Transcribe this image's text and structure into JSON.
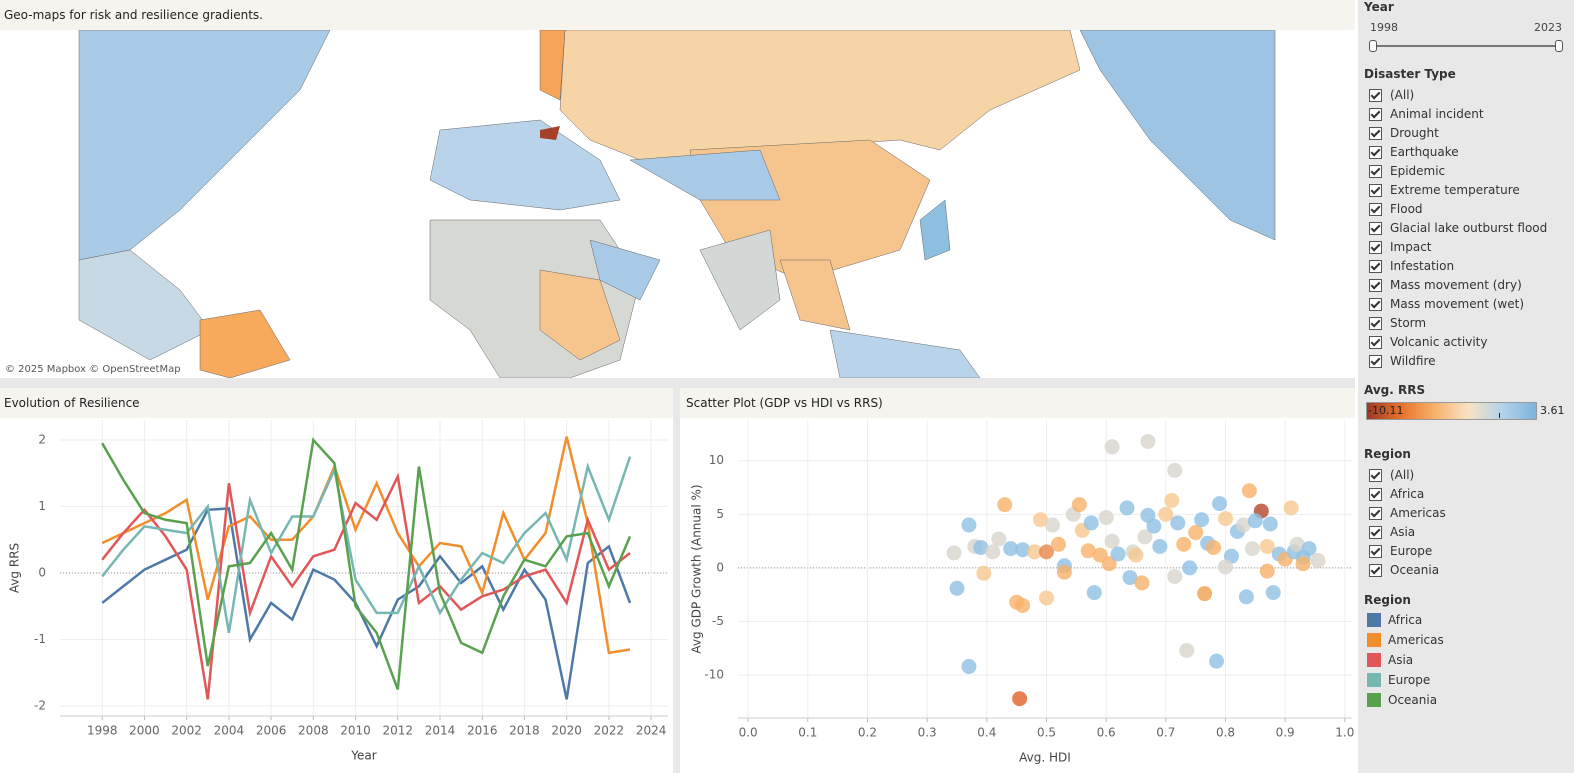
{
  "title": "Geo-maps for risk and resilience gradients.",
  "map": {
    "attribution": "© 2025 Mapbox © OpenStreetMap"
  },
  "filters": {
    "year": {
      "title": "Year",
      "min": 1998,
      "max": 2023
    },
    "disaster_type": {
      "title": "Disaster Type",
      "options": [
        "(All)",
        "Animal incident",
        "Drought",
        "Earthquake",
        "Epidemic",
        "Extreme temperature",
        "Flood",
        "Glacial lake outburst flood",
        "Impact",
        "Infestation",
        "Mass movement (dry)",
        "Mass movement (wet)",
        "Storm",
        "Volcanic activity",
        "Wildfire"
      ]
    },
    "region": {
      "title": "Region",
      "options": [
        "(All)",
        "Africa",
        "Americas",
        "Asia",
        "Europe",
        "Oceania"
      ]
    }
  },
  "color_legend": {
    "title": "Avg. RRS",
    "min": -10.11,
    "max": 3.61
  },
  "region_legend": {
    "title": "Region"
  },
  "chart_data": [
    {
      "type": "line",
      "title": "Evolution of Resilience",
      "x_label": "Year",
      "y_label": "Avg RRS",
      "x": [
        1998,
        1999,
        2000,
        2001,
        2002,
        2003,
        2004,
        2005,
        2006,
        2007,
        2008,
        2009,
        2010,
        2011,
        2012,
        2013,
        2014,
        2015,
        2016,
        2017,
        2018,
        2019,
        2020,
        2021,
        2022,
        2023
      ],
      "series": [
        {
          "name": "Africa",
          "color": "#4e79a7",
          "values": [
            -0.45,
            -0.2,
            0.05,
            0.2,
            0.35,
            0.95,
            0.97,
            -1.0,
            -0.45,
            -0.7,
            0.05,
            -0.1,
            -0.45,
            -1.1,
            -0.4,
            -0.2,
            0.25,
            -0.15,
            0.1,
            -0.55,
            0.05,
            -0.4,
            -1.9,
            0.15,
            0.4,
            -0.45
          ]
        },
        {
          "name": "Americas",
          "color": "#f28e2b",
          "values": [
            0.45,
            0.6,
            0.75,
            0.9,
            1.1,
            -0.4,
            0.7,
            0.85,
            0.5,
            0.5,
            0.85,
            1.6,
            0.65,
            1.35,
            0.6,
            0.1,
            0.45,
            0.4,
            -0.3,
            0.9,
            0.2,
            0.6,
            2.05,
            0.75,
            -1.2,
            -1.15
          ]
        },
        {
          "name": "Asia",
          "color": "#e15759",
          "values": [
            0.2,
            0.6,
            0.95,
            0.55,
            0.05,
            -1.9,
            1.35,
            -0.6,
            0.25,
            -0.2,
            0.25,
            0.35,
            1.05,
            0.8,
            1.45,
            -0.45,
            -0.2,
            -0.55,
            -0.35,
            -0.25,
            -0.05,
            0.05,
            -0.45,
            0.8,
            0.05,
            0.3
          ]
        },
        {
          "name": "Europe",
          "color": "#76b7b2",
          "values": [
            -0.05,
            0.35,
            0.7,
            0.65,
            0.6,
            1.0,
            -0.9,
            1.1,
            0.3,
            0.85,
            0.85,
            1.55,
            -0.1,
            -0.6,
            -0.6,
            0.1,
            -0.6,
            -0.1,
            0.3,
            0.15,
            0.6,
            0.9,
            0.2,
            1.6,
            0.8,
            1.75
          ]
        },
        {
          "name": "Oceania",
          "color": "#59a14f",
          "values": [
            1.95,
            1.4,
            0.9,
            0.8,
            0.75,
            -1.4,
            0.1,
            0.15,
            0.6,
            0.05,
            2.0,
            1.65,
            -0.5,
            -0.9,
            -1.75,
            1.6,
            -0.3,
            -1.05,
            -1.2,
            -0.35,
            0.2,
            0.1,
            0.55,
            0.6,
            -0.2,
            0.55
          ]
        }
      ],
      "xlim": [
        1996,
        2024.8
      ],
      "xticks": [
        1998,
        2000,
        2002,
        2004,
        2006,
        2008,
        2010,
        2012,
        2014,
        2016,
        2018,
        2020,
        2022,
        2024
      ],
      "ylim": [
        -2.15,
        2.3
      ],
      "yticks": [
        -2,
        -1,
        0,
        1,
        2
      ],
      "grid": true
    },
    {
      "type": "scatter",
      "title": "Scatter Plot (GDP vs HDI vs RRS)",
      "x_label": "Avg. HDI",
      "y_label": "Avg GDP Growth (Annual %)",
      "x": [
        0.37,
        0.455,
        0.785,
        0.735,
        0.61,
        0.67,
        0.715,
        0.43,
        0.84,
        0.86,
        0.35,
        0.45,
        0.46,
        0.5,
        0.58,
        0.765,
        0.835,
        0.88,
        0.345,
        0.37,
        0.38,
        0.39,
        0.395,
        0.41,
        0.42,
        0.44,
        0.46,
        0.48,
        0.5,
        0.49,
        0.51,
        0.52,
        0.53,
        0.53,
        0.545,
        0.555,
        0.56,
        0.57,
        0.575,
        0.59,
        0.6,
        0.605,
        0.61,
        0.62,
        0.635,
        0.64,
        0.645,
        0.65,
        0.66,
        0.665,
        0.67,
        0.68,
        0.69,
        0.7,
        0.71,
        0.715,
        0.72,
        0.73,
        0.74,
        0.75,
        0.76,
        0.77,
        0.78,
        0.79,
        0.8,
        0.81,
        0.82,
        0.83,
        0.845,
        0.85,
        0.87,
        0.875,
        0.89,
        0.9,
        0.91,
        0.915,
        0.92,
        0.93,
        0.94,
        0.955,
        0.93,
        0.87,
        0.8
      ],
      "y": [
        -9.2,
        -12.2,
        -8.7,
        -7.7,
        11.3,
        11.8,
        9.1,
        5.9,
        7.2,
        5.3,
        -1.9,
        -3.2,
        -3.5,
        -2.8,
        -2.3,
        -2.4,
        -2.7,
        -2.3,
        1.4,
        4.0,
        2.0,
        1.9,
        -0.5,
        1.5,
        2.7,
        1.8,
        1.7,
        1.5,
        1.5,
        4.5,
        4.0,
        2.2,
        0.2,
        -0.4,
        5.0,
        5.9,
        3.5,
        1.6,
        4.2,
        1.2,
        4.7,
        0.4,
        2.5,
        1.3,
        5.6,
        -0.9,
        1.5,
        1.2,
        -1.4,
        2.9,
        4.9,
        3.9,
        2.0,
        5.0,
        6.3,
        -0.8,
        4.2,
        2.2,
        0.0,
        3.3,
        4.5,
        2.3,
        1.9,
        6.0,
        4.6,
        1.1,
        3.4,
        4.0,
        1.8,
        4.4,
        2.0,
        4.1,
        1.3,
        0.8,
        5.6,
        1.5,
        2.2,
        1.0,
        1.8,
        0.7,
        0.4,
        -0.3,
        0.1
      ],
      "colors": [
        "#8fc1e3",
        "#e0622a",
        "#8fc1e3",
        "#d7d4cb",
        "#d7d4cb",
        "#d7d4cb",
        "#d7d4cb",
        "#f8b26a",
        "#f8b26a",
        "#b5452a",
        "#8fc1e3",
        "#f8b26a",
        "#f8b26a",
        "#f8c890",
        "#8fc1e3",
        "#f0a050",
        "#8fc1e3",
        "#8fc1e3",
        "#d7d4cb",
        "#8fc1e3",
        "#d7d4cb",
        "#8fc1e3",
        "#f8c890",
        "#d7d4cb",
        "#d7d4cb",
        "#8fc1e3",
        "#8fc1e3",
        "#f8c890",
        "#e8854a",
        "#f8c890",
        "#d7d4cb",
        "#f8b26a",
        "#8fc1e3",
        "#f8b26a",
        "#d7d4cb",
        "#f8b26a",
        "#f8c890",
        "#f8b26a",
        "#8fc1e3",
        "#f8b26a",
        "#d7d4cb",
        "#f8b26a",
        "#d7d4cb",
        "#8fc1e3",
        "#8fc1e3",
        "#8fc1e3",
        "#d7d4cb",
        "#f8c890",
        "#f8b26a",
        "#d7d4cb",
        "#8fc1e3",
        "#8fc1e3",
        "#8fc1e3",
        "#f8c890",
        "#f8c890",
        "#d7d4cb",
        "#8fc1e3",
        "#f8b26a",
        "#8fc1e3",
        "#f8b26a",
        "#8fc1e3",
        "#8fc1e3",
        "#f8b26a",
        "#8fc1e3",
        "#f8c890",
        "#8fc1e3",
        "#8fc1e3",
        "#d7d4cb",
        "#d7d4cb",
        "#8fc1e3",
        "#f8c890",
        "#8fc1e3",
        "#8fc1e3",
        "#f8b26a",
        "#f8c890",
        "#8fc1e3",
        "#d7d4cb",
        "#8fc1e3",
        "#8fc1e3",
        "#d7d4cb",
        "#f8b26a",
        "#f8b26a",
        "#d7d4cb"
      ],
      "xlim": [
        -0.017,
        1.012
      ],
      "xticks": [
        {
          "value": 0,
          "label": "0.0"
        },
        0.1,
        0.2,
        0.3,
        0.4,
        0.5,
        0.6,
        0.7,
        0.8,
        0.9,
        {
          "value": 1,
          "label": "1.0"
        }
      ],
      "ylim": [
        -14,
        13.8
      ],
      "yticks": [
        -10,
        -5,
        0,
        5,
        10
      ],
      "grid": true
    }
  ]
}
